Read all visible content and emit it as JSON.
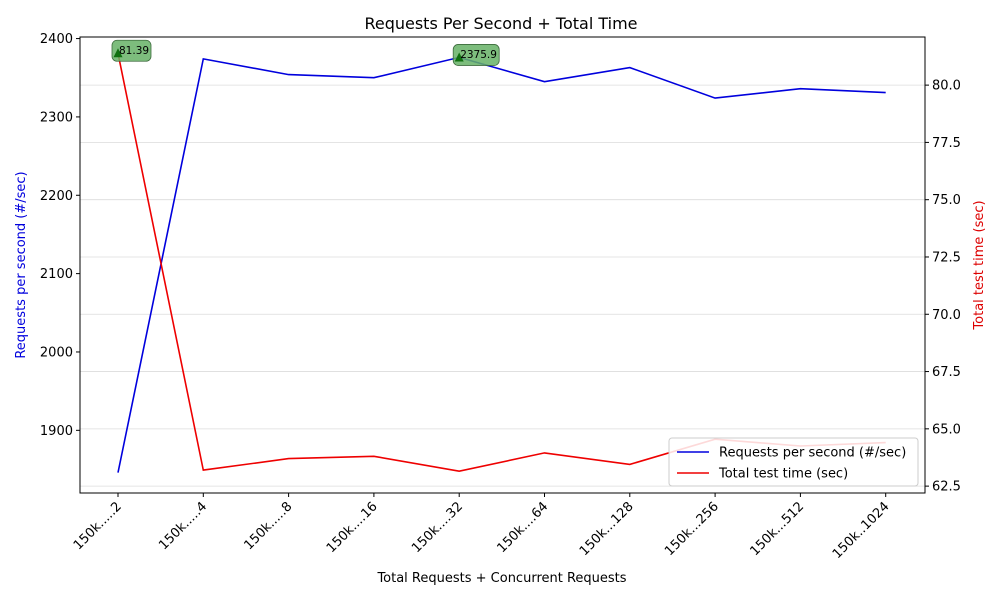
{
  "chart_data": {
    "type": "line",
    "title": "Requests Per Second + Total Time",
    "xlabel": "Total Requests + Concurrent Requests",
    "ylabel_left": "Requests per second (#/sec)",
    "ylabel_right": "Total test time (sec)",
    "categories": [
      "150k.....2",
      "150k.....4",
      "150k.....8",
      "150k....16",
      "150k....32",
      "150k....64",
      "150k...128",
      "150k...256",
      "150k...512",
      "150k..1024"
    ],
    "left_axis": {
      "ylim": [
        1820,
        2402
      ],
      "ticks": [
        1900,
        2000,
        2100,
        2200,
        2300,
        2400
      ]
    },
    "right_axis": {
      "ylim": [
        62.2,
        82.1
      ],
      "ticks": [
        62.5,
        65.0,
        67.5,
        70.0,
        72.5,
        75.0,
        77.5,
        80.0
      ]
    },
    "grid": "horizontal on right axis",
    "legend_position": "lower-right",
    "series": [
      {
        "name": "Requests per second (#/sec)",
        "axis": "left",
        "color": "#0000dd",
        "values": [
          1846,
          2374,
          2354,
          2350,
          2375.9,
          2345,
          2363,
          2324,
          2336,
          2331
        ]
      },
      {
        "name": "Total test time (sec)",
        "axis": "right",
        "color": "#ee0000",
        "values": [
          81.39,
          63.2,
          63.7,
          63.8,
          63.15,
          63.95,
          63.45,
          64.55,
          64.25,
          64.4
        ]
      }
    ],
    "annotations": [
      {
        "text": "81.39",
        "category_index": 0,
        "axis": "right",
        "value": 81.39
      },
      {
        "text": "2375.9",
        "category_index": 4,
        "axis": "left",
        "value": 2375.9
      }
    ]
  }
}
